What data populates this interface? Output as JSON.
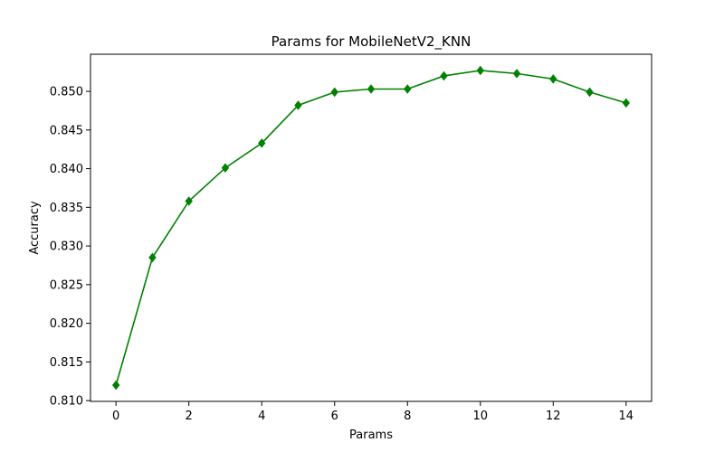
{
  "chart_data": {
    "type": "line",
    "title": "Params for MobileNetV2_KNN",
    "xlabel": "Params",
    "ylabel": "Accuracy",
    "xlim": [
      -0.7,
      14.7
    ],
    "ylim": [
      0.8099,
      0.8548
    ],
    "xticks": [
      0,
      2,
      4,
      6,
      8,
      10,
      12,
      14
    ],
    "yticks": [
      0.81,
      0.815,
      0.82,
      0.825,
      0.83,
      0.835,
      0.84,
      0.845,
      0.85
    ],
    "ytick_labels": [
      "0.810",
      "0.815",
      "0.820",
      "0.825",
      "0.830",
      "0.835",
      "0.840",
      "0.845",
      "0.850"
    ],
    "grid": false,
    "series": [
      {
        "color": "#008000",
        "marker": "diamond",
        "x": [
          0,
          1,
          2,
          3,
          4,
          5,
          6,
          7,
          8,
          9,
          10,
          11,
          12,
          13,
          14
        ],
        "y": [
          0.812,
          0.8285,
          0.8358,
          0.8401,
          0.8433,
          0.8482,
          0.8499,
          0.8503,
          0.8503,
          0.852,
          0.8527,
          0.8523,
          0.8516,
          0.8499,
          0.8485
        ]
      }
    ]
  }
}
